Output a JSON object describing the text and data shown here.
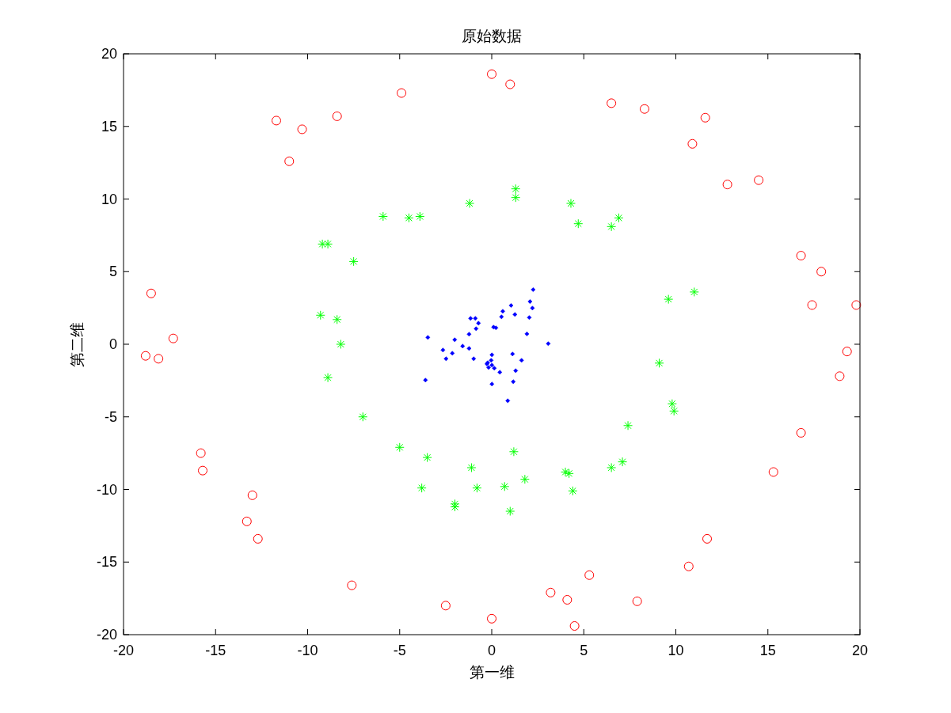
{
  "chart_data": {
    "type": "scatter",
    "title": "原始数据",
    "xlabel": "第一维",
    "ylabel": "第二维",
    "xlim": [
      -20,
      20
    ],
    "ylim": [
      -20,
      20
    ],
    "xticks": [
      -20,
      -15,
      -10,
      -5,
      0,
      5,
      10,
      15,
      20
    ],
    "yticks": [
      -20,
      -15,
      -10,
      -5,
      0,
      5,
      10,
      15,
      20
    ],
    "grid": false,
    "series": [
      {
        "color": "#ff0000",
        "marker": "circle",
        "x": [
          0.0,
          1.0,
          -4.9,
          6.5,
          8.3,
          -11.7,
          -10.3,
          -8.4,
          11.6,
          10.9,
          -11.0,
          12.8,
          14.5,
          16.8,
          17.9,
          17.4,
          19.8,
          -18.5,
          -17.3,
          -18.8,
          -18.1,
          19.3,
          18.9,
          16.8,
          15.3,
          -15.8,
          -15.7,
          -13.0,
          -13.3,
          -12.7,
          11.7,
          10.7,
          5.3,
          -7.6,
          3.2,
          4.1,
          7.9,
          -2.5,
          0.0,
          4.5
        ],
        "values": [
          18.6,
          17.9,
          17.3,
          16.6,
          16.2,
          15.4,
          14.8,
          15.7,
          15.6,
          13.8,
          12.6,
          11.0,
          11.3,
          6.1,
          5.0,
          2.7,
          2.7,
          3.5,
          0.4,
          -0.8,
          -1.0,
          -0.5,
          -2.2,
          -6.1,
          -8.8,
          -7.5,
          -8.7,
          -10.4,
          -12.2,
          -13.4,
          -13.4,
          -15.3,
          -15.9,
          -16.6,
          -17.1,
          -17.6,
          -17.7,
          -18.0,
          -18.9,
          -19.4
        ]
      },
      {
        "color": "#00ff00",
        "marker": "cross",
        "x": [
          1.3,
          1.3,
          -1.2,
          4.3,
          -5.9,
          -4.5,
          -3.9,
          4.7,
          6.5,
          6.9,
          -9.2,
          -8.9,
          -7.5,
          9.6,
          11.0,
          -9.3,
          -8.4,
          -8.2,
          9.1,
          -8.9,
          9.8,
          9.9,
          -7.0,
          7.4,
          -5.0,
          -3.5,
          1.2,
          7.1,
          6.5,
          -1.1,
          4.0,
          4.2,
          -3.8,
          -0.8,
          0.7,
          1.8,
          4.4,
          -2.0,
          -2.0,
          1.0
        ],
        "values": [
          10.7,
          10.1,
          9.7,
          9.7,
          8.8,
          8.7,
          8.8,
          8.3,
          8.1,
          8.7,
          6.9,
          6.9,
          5.7,
          3.1,
          3.6,
          2.0,
          1.7,
          0.0,
          -1.3,
          -2.3,
          -4.1,
          -4.6,
          -5.0,
          -5.6,
          -7.1,
          -7.8,
          -7.4,
          -8.1,
          -8.5,
          -8.5,
          -8.8,
          -8.9,
          -9.9,
          -9.9,
          -9.8,
          -9.3,
          -10.1,
          -11.0,
          -11.2,
          -11.5
        ]
      },
      {
        "color": "#0000ff",
        "marker": "diamond",
        "x": [
          2.25,
          1.05,
          2.08,
          2.21,
          0.6,
          1.26,
          0.53,
          2.04,
          -1.15,
          -0.89,
          -0.72,
          0.1,
          0.23,
          -0.85,
          -1.23,
          1.91,
          -3.47,
          -2.01,
          3.07,
          -1.58,
          -2.65,
          -1.23,
          -2.14,
          -2.48,
          -0.98,
          0.01,
          1.13,
          -0.03,
          1.62,
          -0.22,
          -0.26,
          0.01,
          -0.17,
          0.14,
          0.44,
          1.3,
          -3.6,
          0.01,
          1.17,
          0.87
        ],
        "values": [
          3.76,
          2.67,
          2.94,
          2.49,
          2.27,
          2.05,
          1.89,
          1.84,
          1.78,
          1.78,
          1.45,
          1.18,
          1.13,
          1.07,
          0.69,
          0.71,
          0.47,
          0.31,
          0.04,
          -0.13,
          -0.4,
          -0.29,
          -0.62,
          -1.0,
          -1.0,
          -0.73,
          -0.67,
          -1.11,
          -1.11,
          -1.27,
          -1.36,
          -1.44,
          -1.6,
          -1.65,
          -1.93,
          -1.82,
          -2.47,
          -2.74,
          -2.58,
          -3.89
        ]
      }
    ]
  }
}
